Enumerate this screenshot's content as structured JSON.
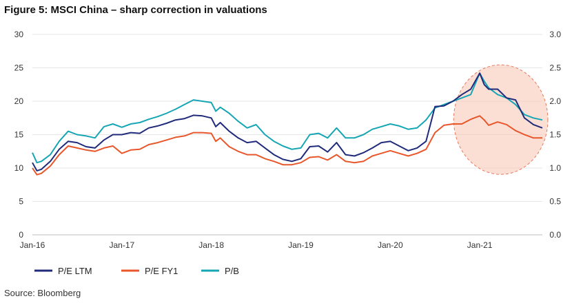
{
  "title": "Figure 5: MSCI China – sharp correction in valuations",
  "source": "Source: Bloomberg",
  "chart_data": {
    "type": "line",
    "x_tick_labels": [
      "Jan-16",
      "Jan-17",
      "Jan-18",
      "Jan-19",
      "Jan-20",
      "Jan-21"
    ],
    "x_range": [
      2016.0,
      2021.7
    ],
    "y_left_range": [
      0,
      30
    ],
    "y_left_ticks": [
      "0",
      "5",
      "10",
      "15",
      "20",
      "25",
      "30"
    ],
    "y_right_range": [
      0.0,
      3.0
    ],
    "y_right_ticks": [
      "0.0",
      "0.5",
      "1.0",
      "1.5",
      "2.0",
      "2.5",
      "3.0"
    ],
    "grid": "horizontal",
    "legend_position": "bottom-left",
    "annotation": "highlight ellipse around 2020.8-2021.7",
    "series": [
      {
        "name": "P/E LTM",
        "axis": "left",
        "color": "#1f2a7a",
        "x": [
          2016.0,
          2016.05,
          2016.1,
          2016.2,
          2016.3,
          2016.4,
          2016.5,
          2016.6,
          2016.7,
          2016.8,
          2016.9,
          2017.0,
          2017.1,
          2017.2,
          2017.3,
          2017.4,
          2017.5,
          2017.6,
          2017.7,
          2017.8,
          2017.9,
          2018.0,
          2018.05,
          2018.1,
          2018.2,
          2018.3,
          2018.4,
          2018.5,
          2018.6,
          2018.7,
          2018.8,
          2018.9,
          2019.0,
          2019.1,
          2019.2,
          2019.3,
          2019.4,
          2019.5,
          2019.6,
          2019.7,
          2019.8,
          2019.9,
          2020.0,
          2020.1,
          2020.2,
          2020.3,
          2020.4,
          2020.5,
          2020.6,
          2020.7,
          2020.8,
          2020.9,
          2021.0,
          2021.05,
          2021.1,
          2021.2,
          2021.3,
          2021.4,
          2021.5,
          2021.6,
          2021.7
        ],
        "values": [
          10.8,
          9.6,
          9.8,
          11.0,
          12.8,
          14.0,
          13.8,
          13.2,
          13.0,
          14.2,
          15.0,
          15.0,
          15.3,
          15.2,
          16.0,
          16.3,
          16.7,
          17.2,
          17.4,
          17.9,
          17.8,
          17.5,
          16.2,
          16.8,
          15.5,
          14.5,
          13.8,
          14.0,
          13.0,
          12.0,
          11.3,
          11.0,
          11.4,
          13.2,
          13.3,
          12.4,
          13.8,
          12.0,
          11.8,
          12.3,
          13.0,
          13.8,
          14.0,
          13.3,
          12.6,
          13.0,
          14.0,
          19.2,
          19.3,
          20.0,
          21.0,
          21.8,
          24.2,
          22.5,
          21.8,
          21.8,
          20.5,
          20.2,
          17.5,
          16.5,
          16.0
        ]
      },
      {
        "name": "P/E FY1",
        "axis": "left",
        "color": "#e8562a",
        "x": [
          2016.0,
          2016.05,
          2016.1,
          2016.2,
          2016.3,
          2016.4,
          2016.5,
          2016.6,
          2016.7,
          2016.8,
          2016.9,
          2017.0,
          2017.1,
          2017.2,
          2017.3,
          2017.4,
          2017.5,
          2017.6,
          2017.7,
          2017.8,
          2017.9,
          2018.0,
          2018.05,
          2018.1,
          2018.2,
          2018.3,
          2018.4,
          2018.5,
          2018.6,
          2018.7,
          2018.8,
          2018.9,
          2019.0,
          2019.1,
          2019.2,
          2019.3,
          2019.4,
          2019.5,
          2019.6,
          2019.7,
          2019.8,
          2019.9,
          2020.0,
          2020.1,
          2020.2,
          2020.3,
          2020.4,
          2020.5,
          2020.6,
          2020.7,
          2020.8,
          2020.9,
          2021.0,
          2021.05,
          2021.1,
          2021.2,
          2021.3,
          2021.4,
          2021.5,
          2021.6,
          2021.7
        ],
        "values": [
          10.0,
          9.0,
          9.2,
          10.3,
          12.0,
          13.3,
          13.0,
          12.7,
          12.5,
          13.0,
          13.3,
          12.2,
          12.7,
          12.8,
          13.5,
          13.8,
          14.2,
          14.6,
          14.8,
          15.3,
          15.3,
          15.2,
          14.0,
          14.5,
          13.2,
          12.5,
          12.0,
          12.0,
          11.4,
          11.0,
          10.5,
          10.5,
          10.8,
          11.6,
          11.7,
          11.2,
          12.0,
          11.0,
          10.8,
          11.0,
          11.8,
          12.2,
          12.6,
          12.2,
          11.8,
          12.2,
          12.8,
          15.3,
          16.4,
          16.6,
          16.6,
          17.3,
          17.8,
          17.2,
          16.4,
          16.9,
          16.5,
          15.6,
          15.0,
          14.5,
          14.5
        ]
      },
      {
        "name": "P/B",
        "axis": "right",
        "color": "#16a5b4",
        "x": [
          2016.0,
          2016.05,
          2016.1,
          2016.2,
          2016.3,
          2016.4,
          2016.5,
          2016.6,
          2016.7,
          2016.8,
          2016.9,
          2017.0,
          2017.1,
          2017.2,
          2017.3,
          2017.4,
          2017.5,
          2017.6,
          2017.7,
          2017.8,
          2017.9,
          2018.0,
          2018.05,
          2018.1,
          2018.2,
          2018.3,
          2018.4,
          2018.5,
          2018.6,
          2018.7,
          2018.8,
          2018.9,
          2019.0,
          2019.1,
          2019.2,
          2019.3,
          2019.4,
          2019.5,
          2019.6,
          2019.7,
          2019.8,
          2019.9,
          2020.0,
          2020.1,
          2020.2,
          2020.3,
          2020.4,
          2020.5,
          2020.6,
          2020.7,
          2020.8,
          2020.9,
          2021.0,
          2021.05,
          2021.1,
          2021.2,
          2021.3,
          2021.4,
          2021.5,
          2021.6,
          2021.7
        ],
        "values": [
          1.23,
          1.08,
          1.1,
          1.2,
          1.4,
          1.55,
          1.5,
          1.48,
          1.45,
          1.62,
          1.66,
          1.61,
          1.66,
          1.68,
          1.73,
          1.77,
          1.82,
          1.88,
          1.95,
          2.02,
          2.0,
          1.98,
          1.85,
          1.91,
          1.82,
          1.7,
          1.6,
          1.65,
          1.5,
          1.4,
          1.33,
          1.28,
          1.3,
          1.5,
          1.52,
          1.45,
          1.6,
          1.45,
          1.45,
          1.5,
          1.58,
          1.62,
          1.66,
          1.63,
          1.58,
          1.6,
          1.72,
          1.9,
          1.95,
          2.0,
          2.05,
          2.1,
          2.42,
          2.3,
          2.2,
          2.1,
          2.05,
          1.95,
          1.8,
          1.75,
          1.72
        ]
      }
    ]
  }
}
